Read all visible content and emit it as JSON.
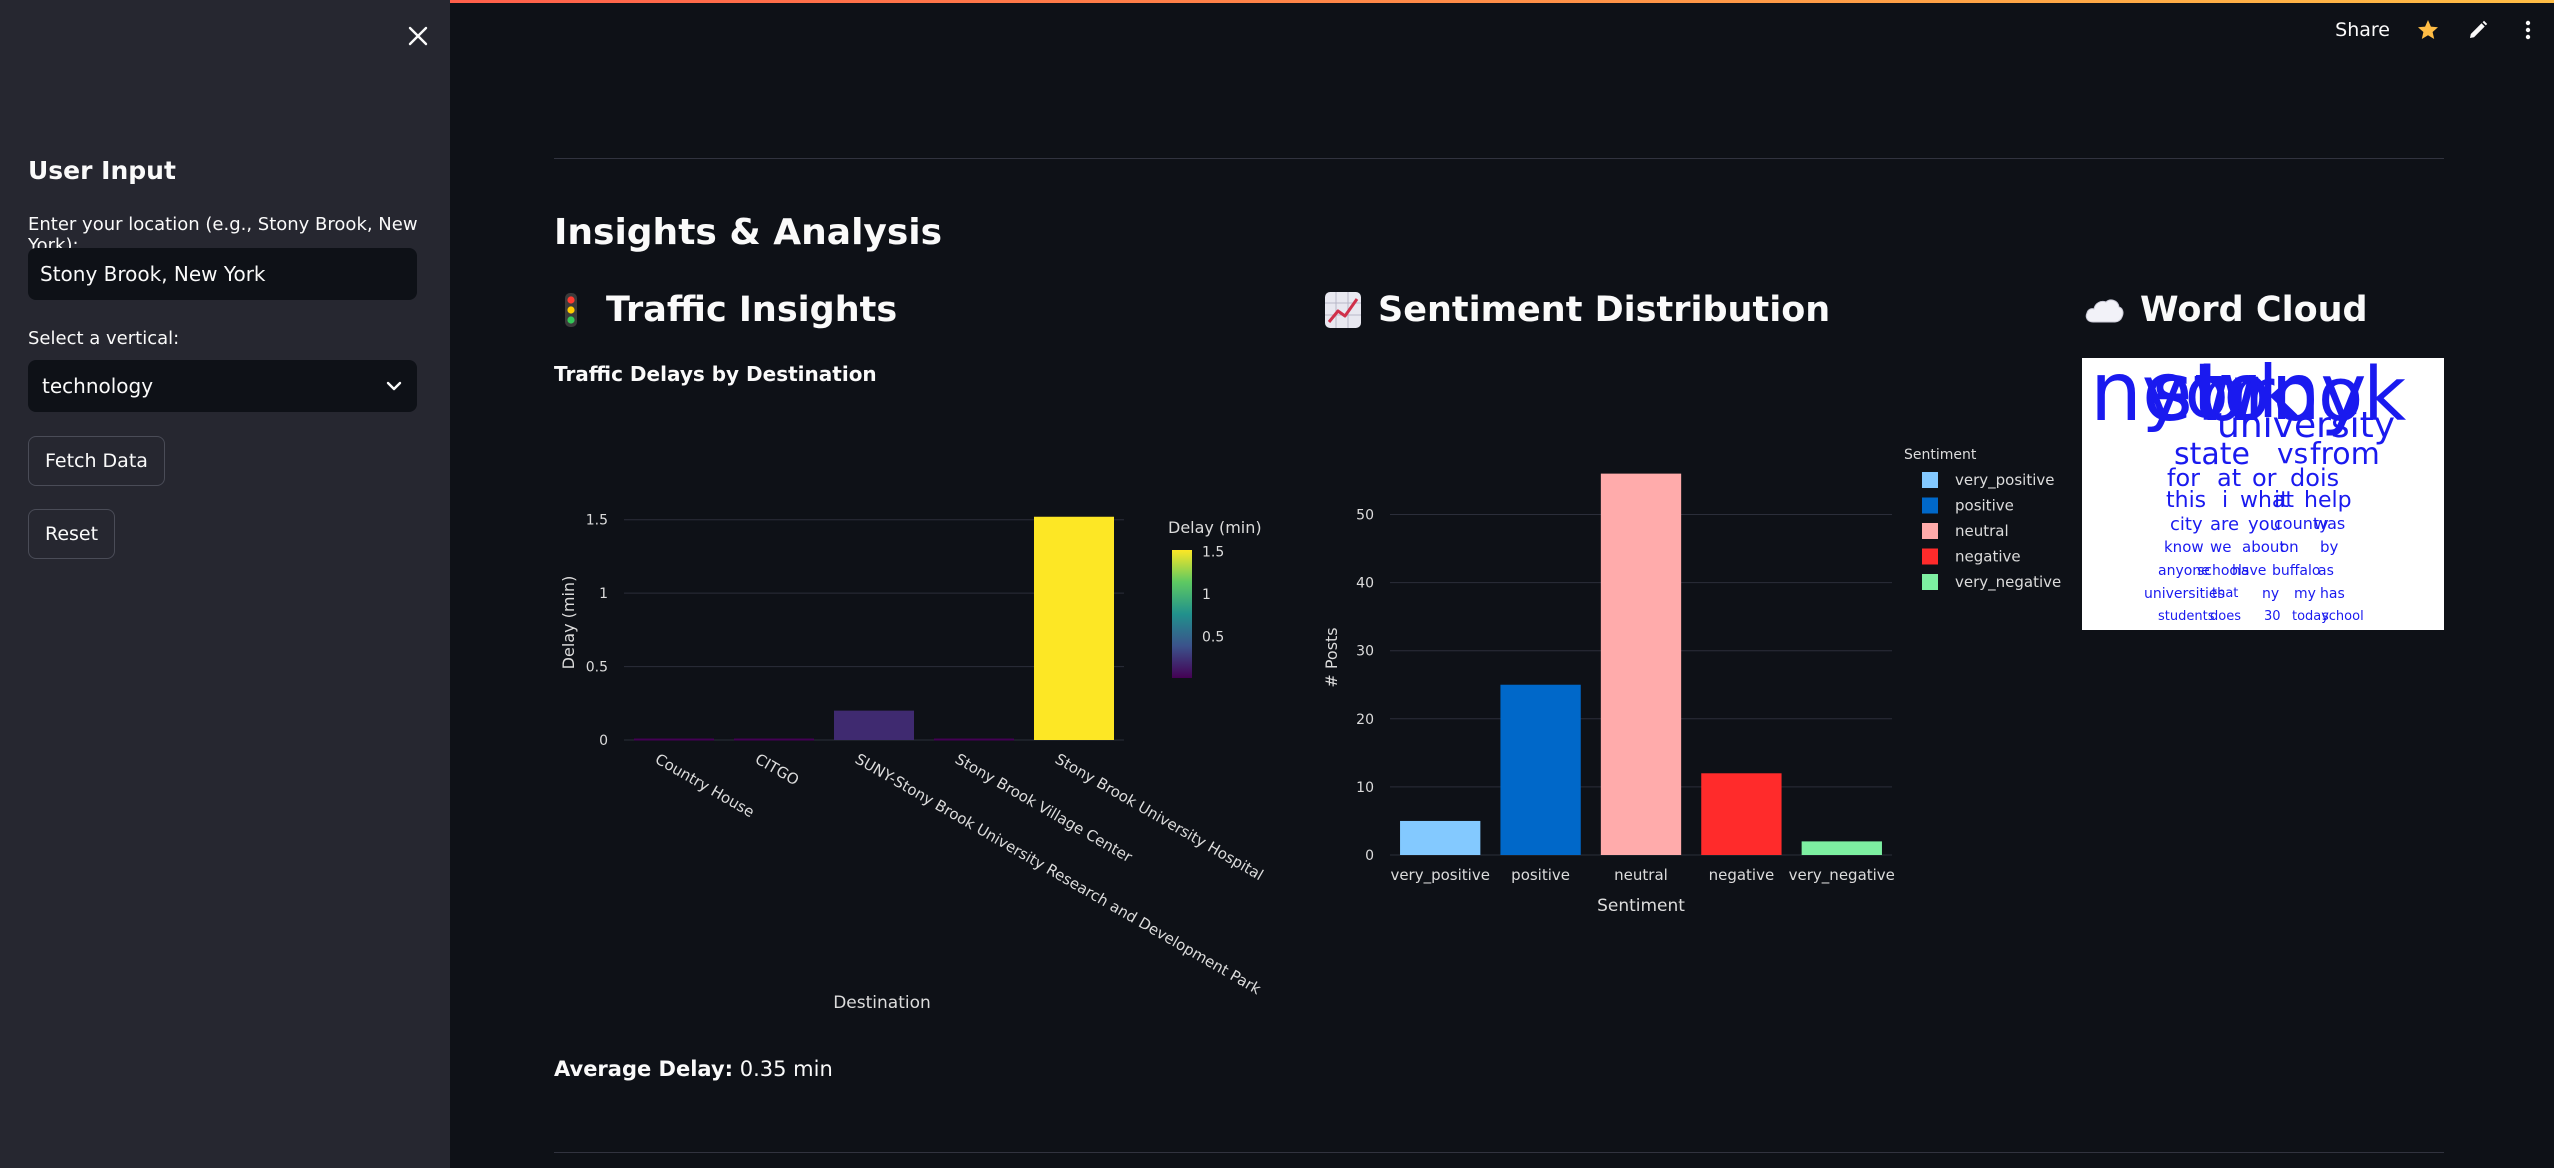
{
  "sidebar": {
    "title": "User Input",
    "location_label": "Enter your location (e.g., Stony Brook, New York):",
    "location_value": "Stony Brook, New York",
    "vertical_label": "Select a vertical:",
    "vertical_value": "technology",
    "fetch_label": "Fetch Data",
    "reset_label": "Reset"
  },
  "toolbar": {
    "share_label": "Share",
    "icons": [
      "star-icon",
      "edit-icon",
      "more-menu-icon"
    ],
    "star_color": "#ffbd45"
  },
  "main": {
    "title": "Insights & Analysis",
    "traffic_title": "Traffic Insights",
    "sentiment_title": "Sentiment Distribution",
    "wordcloud_title": "Word Cloud",
    "traffic_chart_title": "Traffic Delays by Destination",
    "avg_label": "Average Delay:",
    "avg_value": "0.35 min"
  },
  "chart_data": [
    {
      "type": "bar",
      "title": "Traffic Delays by Destination",
      "xlabel": "Destination",
      "ylabel": "Delay (min)",
      "categories": [
        "Country House",
        "CITGO",
        "SUNY-Stony Brook University Research and Development Park",
        "Stony Brook Village Center",
        "Stony Brook University Hospital"
      ],
      "values": [
        0.01,
        0.01,
        0.2,
        0.01,
        1.52
      ],
      "ylim": [
        0,
        1.6
      ],
      "yticks": [
        "0",
        "0.5",
        "1",
        "1.5"
      ],
      "colorbar": {
        "title": "Delay (min)",
        "ticks": [
          "1.5",
          "1",
          "0.5"
        ],
        "colorscale": "viridis"
      },
      "grid": true
    },
    {
      "type": "bar",
      "xlabel": "Sentiment",
      "ylabel": "# Posts",
      "categories": [
        "very_positive",
        "positive",
        "neutral",
        "negative",
        "very_negative"
      ],
      "values": [
        5,
        25,
        56,
        12,
        2
      ],
      "colors": [
        "#83c9ff",
        "#0068c9",
        "#ffabab",
        "#ff2b2b",
        "#7defa1"
      ],
      "ylim": [
        0,
        58
      ],
      "yticks": [
        "0",
        "10",
        "20",
        "30",
        "40",
        "50"
      ],
      "legend": {
        "title": "Sentiment",
        "position": "right"
      },
      "grid": true
    }
  ],
  "wordcloud": {
    "words": [
      "new",
      "york",
      "stony",
      "brook",
      "university",
      "state",
      "vs",
      "from",
      "for",
      "at",
      "or",
      "do",
      "is",
      "this",
      "i",
      "what",
      "it",
      "help",
      "city",
      "are",
      "you",
      "county",
      "was",
      "know",
      "we",
      "about",
      "on",
      "by",
      "anyone",
      "schools",
      "have",
      "buffalo",
      "as",
      "universities",
      "that",
      "ny",
      "my",
      "has",
      "students",
      "does",
      "30",
      "today",
      "school"
    ],
    "color": "#1a1aef"
  }
}
